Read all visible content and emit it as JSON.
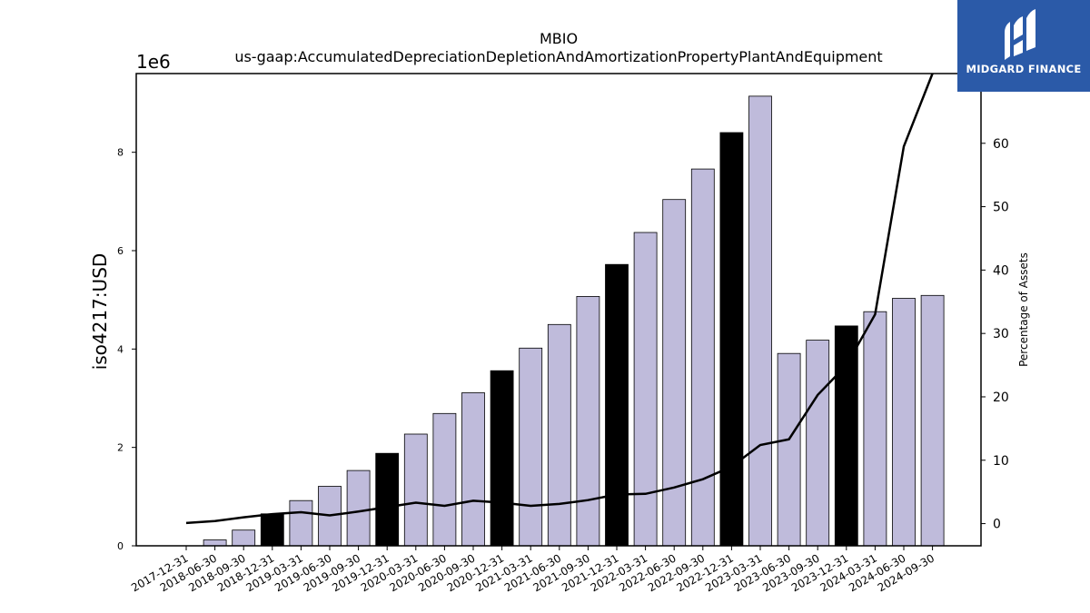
{
  "chart_data": {
    "type": "bar",
    "title": "MBIO",
    "subtitle": "us-gaap:AccumulatedDepreciationDepletionAndAmortizationPropertyPlantAndEquipment",
    "ylabel": "iso4217:USD",
    "y_offset_label": "1e6",
    "y2label": "Percentage of Assets",
    "ylim": [
      0,
      9.6
    ],
    "y_scale_note": "values in millions (1e6)",
    "yticks": [
      0,
      2,
      4,
      6,
      8
    ],
    "y2lim": [
      -3.5,
      71
    ],
    "y2ticks": [
      0,
      10,
      20,
      30,
      40,
      50,
      60
    ],
    "grid": false,
    "categories": [
      "2017-12-31",
      "2018-06-30",
      "2018-09-30",
      "2018-12-31",
      "2019-03-31",
      "2019-06-30",
      "2019-09-30",
      "2019-12-31",
      "2020-03-31",
      "2020-06-30",
      "2020-09-30",
      "2020-12-31",
      "2021-03-31",
      "2021-06-30",
      "2021-09-30",
      "2021-12-31",
      "2022-03-31",
      "2022-06-30",
      "2022-09-30",
      "2022-12-31",
      "2023-03-31",
      "2023-06-30",
      "2023-09-30",
      "2023-12-31",
      "2024-03-31",
      "2024-06-30",
      "2024-09-30"
    ],
    "series": [
      {
        "type": "bar",
        "values": [
          0,
          0.12,
          0.32,
          0.65,
          0.92,
          1.21,
          1.53,
          1.88,
          2.27,
          2.69,
          3.11,
          3.56,
          4.02,
          4.5,
          5.07,
          5.72,
          6.37,
          7.04,
          7.66,
          8.4,
          9.14,
          3.91,
          4.18,
          4.47,
          4.76,
          5.03,
          5.09
        ],
        "highlight_indices": [
          3,
          7,
          11,
          15,
          19,
          23
        ],
        "color": "#bfbbdb",
        "highlight_color": "#000000"
      },
      {
        "type": "line",
        "axis": "right",
        "values": [
          0.1,
          0.4,
          1.0,
          1.5,
          1.8,
          1.3,
          1.9,
          2.6,
          3.3,
          2.8,
          3.6,
          3.3,
          2.8,
          3.1,
          3.7,
          4.6,
          4.7,
          5.7,
          7.0,
          9.0,
          12.4,
          13.3,
          20.3,
          25.0,
          33.0,
          59.5,
          71.0
        ],
        "color": "#000000"
      }
    ]
  },
  "logo": {
    "text": "MIDGARD FINANCE",
    "bg_color": "#2b5aa8"
  }
}
